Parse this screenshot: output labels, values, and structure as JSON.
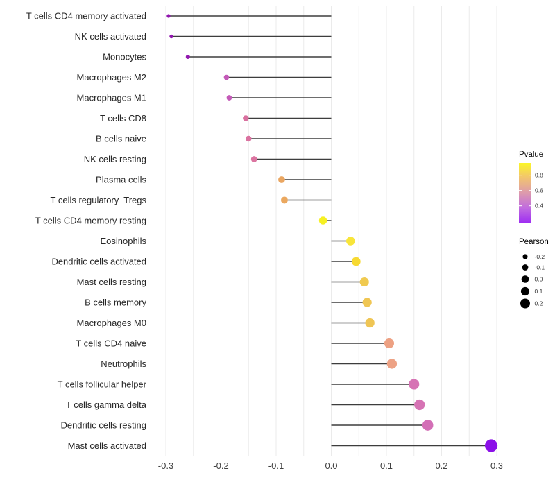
{
  "chart_data": {
    "type": "lollipop",
    "title": "",
    "xlabel": "",
    "ylabel": "",
    "xlim": [
      -0.325,
      0.327
    ],
    "grid_step": 0.05,
    "grid_on": true,
    "x_ticks": [
      {
        "value": -0.3,
        "label": "-0.3"
      },
      {
        "value": -0.2,
        "label": "-0.2"
      },
      {
        "value": -0.1,
        "label": "-0.1"
      },
      {
        "value": 0.0,
        "label": "0.0"
      },
      {
        "value": 0.1,
        "label": "0.1"
      },
      {
        "value": 0.2,
        "label": "0.2"
      },
      {
        "value": 0.3,
        "label": "0.3"
      }
    ],
    "points": [
      {
        "label": "T cells CD4 memory activated",
        "pearson": -0.295,
        "color": "#9016ad"
      },
      {
        "label": "NK cells activated",
        "pearson": -0.29,
        "color": "#9016ad"
      },
      {
        "label": "Monocytes",
        "pearson": -0.26,
        "color": "#9319b0"
      },
      {
        "label": "Macrophages M2",
        "pearson": -0.19,
        "color": "#c45ab8"
      },
      {
        "label": "Macrophages M1",
        "pearson": -0.185,
        "color": "#c45ab8"
      },
      {
        "label": "T cells CD8",
        "pearson": -0.155,
        "color": "#d9709f"
      },
      {
        "label": "B cells naive",
        "pearson": -0.15,
        "color": "#da72a0"
      },
      {
        "label": "NK cells resting",
        "pearson": -0.14,
        "color": "#db74a0"
      },
      {
        "label": "Plasma cells",
        "pearson": -0.09,
        "color": "#eaa661"
      },
      {
        "label": "T cells regulatory  Tregs",
        "pearson": -0.085,
        "color": "#eba85f"
      },
      {
        "label": "T cells CD4 memory resting",
        "pearson": -0.015,
        "color": "#f6f022"
      },
      {
        "label": "Eosinophils",
        "pearson": 0.035,
        "color": "#f8e53a"
      },
      {
        "label": "Dendritic cells activated",
        "pearson": 0.045,
        "color": "#f7d932"
      },
      {
        "label": "Mast cells resting",
        "pearson": 0.06,
        "color": "#f0ca50"
      },
      {
        "label": "B cells memory",
        "pearson": 0.065,
        "color": "#f0c653"
      },
      {
        "label": "Macrophages M0",
        "pearson": 0.07,
        "color": "#efc554"
      },
      {
        "label": "T cells CD4 naive",
        "pearson": 0.105,
        "color": "#eda183"
      },
      {
        "label": "Neutrophils",
        "pearson": 0.11,
        "color": "#eda285"
      },
      {
        "label": "T cells follicular helper",
        "pearson": 0.15,
        "color": "#d673b4"
      },
      {
        "label": "T cells gamma delta",
        "pearson": 0.16,
        "color": "#d673b4"
      },
      {
        "label": "Dendritic cells resting",
        "pearson": 0.175,
        "color": "#d36fb6"
      },
      {
        "label": "Mast cells activated",
        "pearson": 0.29,
        "color": "#8b10e8"
      }
    ],
    "legend_pvalue": {
      "title": "Pvalue",
      "ticks": [
        {
          "value": 0.8,
          "label": "0.8"
        },
        {
          "value": 0.6,
          "label": "0.6"
        },
        {
          "value": 0.4,
          "label": "0.4"
        }
      ],
      "bar_range": [
        0.96,
        0.17
      ],
      "gradient_top_to_bottom": [
        "#fbf628",
        "#f2c46e",
        "#dd9bac",
        "#c06ae0",
        "#9d2cf2"
      ],
      "gradient_offsets": [
        0,
        0.24,
        0.49,
        0.75,
        1
      ]
    },
    "legend_pearson": {
      "title": "Pearson",
      "entries": [
        {
          "value": -0.2,
          "label": "-0.2"
        },
        {
          "value": -0.1,
          "label": "-0.1"
        },
        {
          "value": 0.0,
          "label": "0.0"
        },
        {
          "value": 0.1,
          "label": "0.1"
        },
        {
          "value": 0.2,
          "label": "0.2"
        }
      ],
      "dot_color": "#000000"
    }
  },
  "colors": {
    "background": "#ffffff",
    "grid": "#ebebeb",
    "stem": "#3d3d3d",
    "axis_tick_text": "#404040",
    "axis_label_text": "#262626",
    "legend_title_text": "#000000",
    "legend_tick_text": "#333333"
  }
}
